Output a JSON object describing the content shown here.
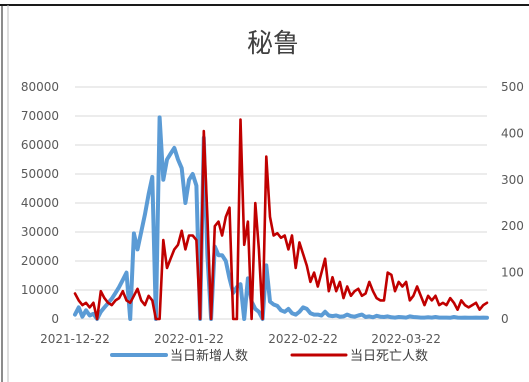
{
  "colors": {
    "series_cases": "#5B9BD5",
    "series_deaths": "#C00000",
    "grid": "#D9D9D9",
    "axis_text": "#595959",
    "title": "#404040",
    "frame_border": "#1a1a1a"
  },
  "chart_data": {
    "type": "line",
    "title": "秘鲁",
    "xlabel": "",
    "ylabel": "",
    "x_tick_labels": [
      "2021-12-22",
      "2022-01-22",
      "2022-02-22",
      "2022-03-22"
    ],
    "x_tick_indices": [
      0,
      31,
      62,
      90
    ],
    "x_range": [
      0,
      112
    ],
    "y_left": {
      "lim": [
        0,
        80000
      ],
      "ticks": [
        "0",
        "10000",
        "20000",
        "30000",
        "40000",
        "50000",
        "60000",
        "70000",
        "80000"
      ]
    },
    "y_right": {
      "lim": [
        0,
        500
      ],
      "ticks": [
        "0",
        "100",
        "200",
        "300",
        "400",
        "500"
      ]
    },
    "grid": true,
    "legend_position": "bottom",
    "series": [
      {
        "name": "当日新增人数",
        "axis": "left",
        "x": [
          0,
          1,
          2,
          3,
          4,
          5,
          6,
          7,
          8,
          9,
          10,
          11,
          12,
          13,
          14,
          15,
          16,
          17,
          18,
          19,
          20,
          21,
          22,
          23,
          24,
          25,
          26,
          27,
          28,
          29,
          30,
          31,
          32,
          33,
          34,
          35,
          36,
          37,
          38,
          39,
          40,
          41,
          42,
          43,
          44,
          45,
          46,
          47,
          48,
          49,
          50,
          51,
          52,
          53,
          54,
          55,
          56,
          57,
          58,
          59,
          60,
          61,
          62,
          63,
          64,
          65,
          66,
          67,
          68,
          69,
          70,
          71,
          72,
          73,
          74,
          75,
          76,
          77,
          78,
          79,
          80,
          81,
          82,
          83,
          84,
          85,
          86,
          87,
          88,
          89,
          90,
          91,
          92,
          93,
          94,
          95,
          96,
          97,
          98,
          99,
          100,
          101,
          102,
          103,
          104,
          105,
          106,
          107,
          108,
          109,
          110,
          111,
          112
        ],
        "values": [
          1500,
          4000,
          800,
          3000,
          1200,
          1800,
          0,
          2500,
          4000,
          5500,
          7000,
          9000,
          11000,
          13500,
          16000,
          0,
          29500,
          24000,
          30000,
          36000,
          43000,
          49000,
          0,
          69500,
          48000,
          55000,
          57000,
          59000,
          55000,
          52000,
          40000,
          48000,
          50000,
          46000,
          0,
          62500,
          22000,
          0,
          25000,
          22000,
          22000,
          20000,
          14000,
          9000,
          11000,
          12000,
          0,
          14000,
          6000,
          3500,
          2500,
          0,
          18500,
          6000,
          5000,
          4500,
          3000,
          2500,
          3500,
          2000,
          1500,
          2500,
          4000,
          3500,
          2000,
          1500,
          1500,
          1200,
          2500,
          1200,
          1000,
          1200,
          800,
          900,
          1500,
          1000,
          800,
          1200,
          1500,
          700,
          900,
          600,
          1100,
          800,
          700,
          900,
          600,
          500,
          700,
          600,
          500,
          900,
          700,
          600,
          500,
          500,
          600,
          500,
          700,
          500,
          500,
          500,
          400,
          700,
          500,
          400,
          500,
          400,
          400,
          500,
          400,
          500,
          400
        ]
      },
      {
        "name": "当日死亡人数",
        "axis": "right",
        "x": [
          0,
          1,
          2,
          3,
          4,
          5,
          6,
          7,
          8,
          9,
          10,
          11,
          12,
          13,
          14,
          15,
          16,
          17,
          18,
          19,
          20,
          21,
          22,
          23,
          24,
          25,
          26,
          27,
          28,
          29,
          30,
          31,
          32,
          33,
          34,
          35,
          36,
          37,
          38,
          39,
          40,
          41,
          42,
          43,
          44,
          45,
          46,
          47,
          48,
          49,
          50,
          51,
          52,
          53,
          54,
          55,
          56,
          57,
          58,
          59,
          60,
          61,
          62,
          63,
          64,
          65,
          66,
          67,
          68,
          69,
          70,
          71,
          72,
          73,
          74,
          75,
          76,
          77,
          78,
          79,
          80,
          81,
          82,
          83,
          84,
          85,
          86,
          87,
          88,
          89,
          90,
          91,
          92,
          93,
          94,
          95,
          96,
          97,
          98,
          99,
          100,
          101,
          102,
          103,
          104,
          105,
          106,
          107,
          108,
          109,
          110,
          111,
          112
        ],
        "values": [
          55,
          40,
          30,
          35,
          25,
          35,
          0,
          60,
          45,
          35,
          30,
          40,
          45,
          60,
          40,
          35,
          50,
          65,
          40,
          30,
          50,
          40,
          0,
          0,
          170,
          110,
          130,
          150,
          160,
          190,
          150,
          180,
          180,
          170,
          0,
          405,
          220,
          0,
          200,
          210,
          180,
          220,
          240,
          0,
          0,
          430,
          160,
          210,
          0,
          250,
          150,
          0,
          350,
          220,
          180,
          185,
          175,
          180,
          150,
          180,
          110,
          165,
          140,
          115,
          80,
          100,
          70,
          100,
          130,
          60,
          90,
          60,
          80,
          45,
          70,
          50,
          60,
          65,
          50,
          55,
          80,
          60,
          45,
          40,
          40,
          100,
          95,
          60,
          80,
          70,
          80,
          40,
          50,
          70,
          50,
          30,
          50,
          40,
          50,
          30,
          35,
          30,
          45,
          35,
          20,
          40,
          30,
          25,
          30,
          35,
          20,
          30,
          35
        ]
      }
    ]
  }
}
